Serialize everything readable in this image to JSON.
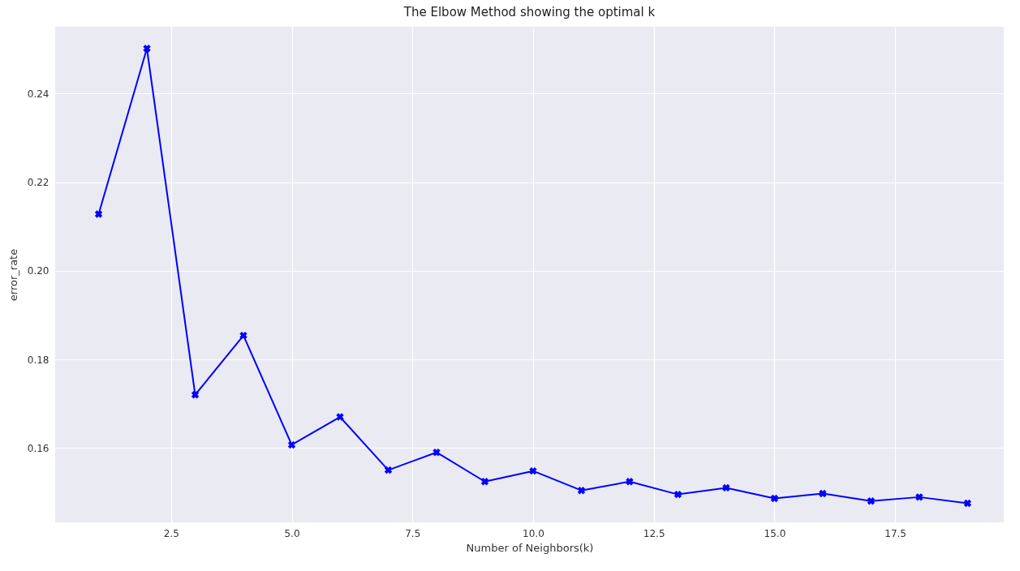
{
  "chart_data": {
    "type": "line",
    "title": "The Elbow Method showing the optimal k",
    "xlabel": "Number of Neighbors(k)",
    "ylabel": "error_rate",
    "x": [
      1,
      2,
      3,
      4,
      5,
      6,
      7,
      8,
      9,
      10,
      11,
      12,
      13,
      14,
      15,
      16,
      17,
      18,
      19
    ],
    "series": [
      {
        "color": "#0000ff",
        "values": [
          0.2128,
          0.2502,
          0.172,
          0.1854,
          0.1607,
          0.167,
          0.155,
          0.159,
          0.1524,
          0.1548,
          0.1504,
          0.1524,
          0.1495,
          0.151,
          0.1486,
          0.1497,
          0.148,
          0.1489,
          0.1475
        ]
      }
    ],
    "xlim": [
      0.1,
      19.75
    ],
    "xticks": [
      {
        "value": 2.5,
        "label": "2.5"
      },
      {
        "value": 5,
        "label": "5.0"
      },
      {
        "value": 7.5,
        "label": "7.5"
      },
      {
        "value": 10,
        "label": "10.0"
      },
      {
        "value": 12.5,
        "label": "12.5"
      },
      {
        "value": 15,
        "label": "15.0"
      },
      {
        "value": 17.5,
        "label": "17.5"
      }
    ],
    "ylim": [
      0.1432,
      0.2551
    ],
    "yticks": [
      {
        "value": 0.16,
        "label": "0.16"
      },
      {
        "value": 0.18,
        "label": "0.18"
      },
      {
        "value": 0.2,
        "label": "0.20"
      },
      {
        "value": 0.22,
        "label": "0.22"
      },
      {
        "value": 0.24,
        "label": "0.24"
      }
    ],
    "grid": true,
    "marker": "cross",
    "line_style": "solid",
    "legend": false
  }
}
